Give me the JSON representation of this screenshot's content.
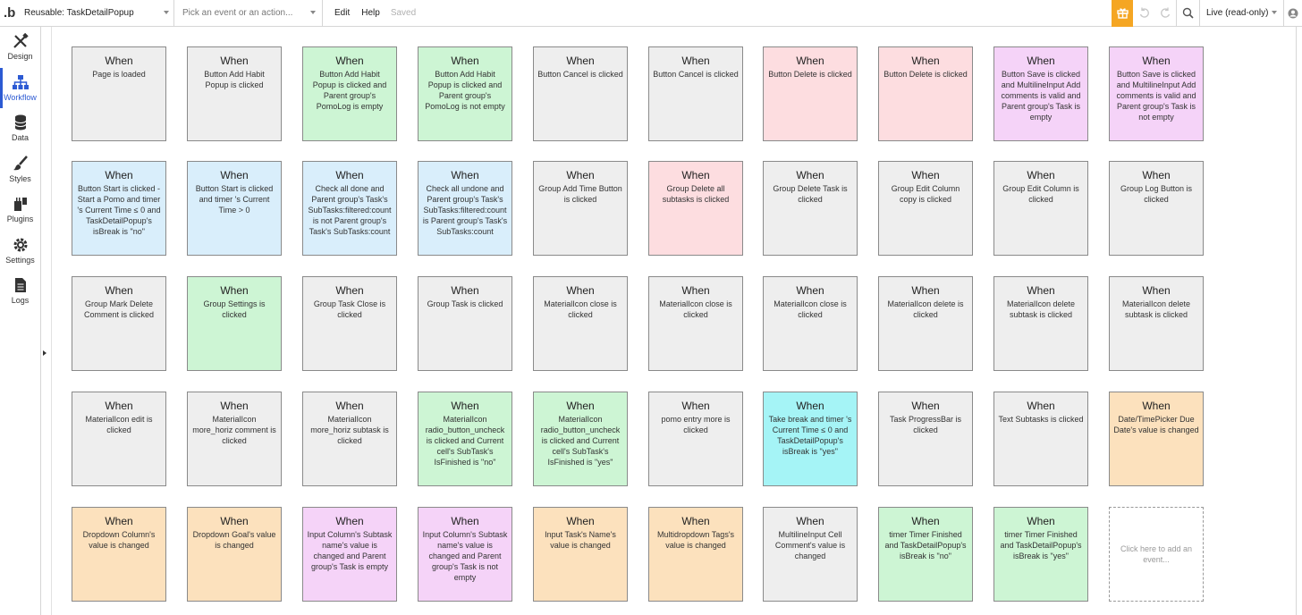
{
  "topbar": {
    "page_selector": "Reusable: TaskDetailPopup",
    "event_placeholder": "Pick an event or an action...",
    "edit": "Edit",
    "help": "Help",
    "saved": "Saved",
    "mode": "Live (read-only)"
  },
  "sidebar": {
    "items": [
      {
        "label": "Design",
        "icon": "design-icon"
      },
      {
        "label": "Workflow",
        "icon": "workflow-icon",
        "active": true
      },
      {
        "label": "Data",
        "icon": "database-icon"
      },
      {
        "label": "Styles",
        "icon": "brush-icon"
      },
      {
        "label": "Plugins",
        "icon": "plug-icon"
      },
      {
        "label": "Settings",
        "icon": "gear-icon"
      },
      {
        "label": "Logs",
        "icon": "document-icon"
      }
    ]
  },
  "colors": {
    "gray": "#eeeeee",
    "green": "#cdf5d4",
    "red": "#fddde0",
    "purple": "#f5d3f8",
    "blue": "#d9eefb",
    "cyan": "#a5f4f6",
    "orange": "#fce1bd",
    "accent": "#2c5ad3",
    "gift": "#f5a623"
  },
  "when_label": "When",
  "add_event_label": "Click here to add an event...",
  "events": [
    [
      {
        "text": "Page is loaded",
        "color": "gray"
      },
      {
        "text": "Button Add Habit Popup is clicked",
        "color": "gray"
      },
      {
        "text": "Button Add Habit Popup is clicked and Parent group's PomoLog is empty",
        "color": "green"
      },
      {
        "text": "Button Add Habit Popup is clicked and Parent group's PomoLog is not empty",
        "color": "green"
      },
      {
        "text": "Button Cancel is clicked",
        "color": "gray"
      },
      {
        "text": "Button Cancel is clicked",
        "color": "gray"
      },
      {
        "text": "Button Delete is clicked",
        "color": "red"
      },
      {
        "text": "Button Delete is clicked",
        "color": "red"
      },
      {
        "text": "Button Save is clicked and MultilineInput Add comments is valid and Parent group's Task is empty",
        "color": "purple"
      },
      {
        "text": "Button Save is clicked and MultilineInput Add comments is valid and Parent group's Task is not empty",
        "color": "purple"
      }
    ],
    [
      {
        "text": "Button Start is clicked - Start a Pomo and timer 's Current Time ≤ 0 and TaskDetailPopup's isBreak is \"no\"",
        "color": "blue"
      },
      {
        "text": "Button Start is clicked and timer 's Current Time > 0",
        "color": "blue"
      },
      {
        "text": "Check all done and Parent group's Task's SubTasks:filtered:count is not Parent group's Task's SubTasks:count",
        "color": "blue"
      },
      {
        "text": "Check all undone and Parent group's Task's SubTasks:filtered:count is Parent group's Task's SubTasks:count",
        "color": "blue"
      },
      {
        "text": "Group Add Time Button is clicked",
        "color": "gray"
      },
      {
        "text": "Group Delete all subtasks is clicked",
        "color": "red"
      },
      {
        "text": "Group Delete Task is clicked",
        "color": "gray"
      },
      {
        "text": "Group Edit Column copy is clicked",
        "color": "gray"
      },
      {
        "text": "Group Edit Column is clicked",
        "color": "gray"
      },
      {
        "text": "Group Log Button is clicked",
        "color": "gray"
      }
    ],
    [
      {
        "text": "Group Mark Delete Comment is clicked",
        "color": "gray"
      },
      {
        "text": "Group Settings is clicked",
        "color": "green"
      },
      {
        "text": "Group Task Close is clicked",
        "color": "gray"
      },
      {
        "text": "Group Task is clicked",
        "color": "gray"
      },
      {
        "text": "MaterialIcon close is clicked",
        "color": "gray"
      },
      {
        "text": "MaterialIcon close is clicked",
        "color": "gray"
      },
      {
        "text": "MaterialIcon close is clicked",
        "color": "gray"
      },
      {
        "text": "MaterialIcon delete is clicked",
        "color": "gray"
      },
      {
        "text": "MaterialIcon delete subtask is clicked",
        "color": "gray"
      },
      {
        "text": "MaterialIcon delete subtask is clicked",
        "color": "gray"
      }
    ],
    [
      {
        "text": "MaterialIcon edit is clicked",
        "color": "gray"
      },
      {
        "text": "MaterialIcon more_horiz comment is clicked",
        "color": "gray"
      },
      {
        "text": "MaterialIcon more_horiz subtask is clicked",
        "color": "gray"
      },
      {
        "text": "MaterialIcon radio_button_uncheck is clicked and Current cell's SubTask's IsFinished is \"no\"",
        "color": "green"
      },
      {
        "text": "MaterialIcon radio_button_uncheck is clicked and Current cell's SubTask's IsFinished is \"yes\"",
        "color": "green"
      },
      {
        "text": "pomo entry more is clicked",
        "color": "gray"
      },
      {
        "text": "Take break and timer 's Current Time ≤ 0 and TaskDetailPopup's isBreak is \"yes\"",
        "color": "cyan"
      },
      {
        "text": "Task ProgressBar is clicked",
        "color": "gray"
      },
      {
        "text": "Text Subtasks is clicked",
        "color": "gray"
      },
      {
        "text": "Date/TimePicker Due Date's value is changed",
        "color": "orange"
      }
    ],
    [
      {
        "text": "Dropdown Column's value is changed",
        "color": "orange"
      },
      {
        "text": "Dropdown Goal's value is changed",
        "color": "orange"
      },
      {
        "text": "Input Column's Subtask name's value is changed and Parent group's Task is empty",
        "color": "purple"
      },
      {
        "text": "Input Column's Subtask name's value is changed and Parent group's Task is not empty",
        "color": "purple"
      },
      {
        "text": "Input Task's Name's value is changed",
        "color": "orange"
      },
      {
        "text": "Multidropdown Tags's value is changed",
        "color": "orange"
      },
      {
        "text": "MultilineInput Cell Comment's value is changed",
        "color": "gray"
      },
      {
        "text": "timer Timer Finished and TaskDetailPopup's isBreak is \"no\"",
        "color": "green"
      },
      {
        "text": "timer Timer Finished and TaskDetailPopup's isBreak is \"yes\"",
        "color": "green"
      }
    ]
  ]
}
